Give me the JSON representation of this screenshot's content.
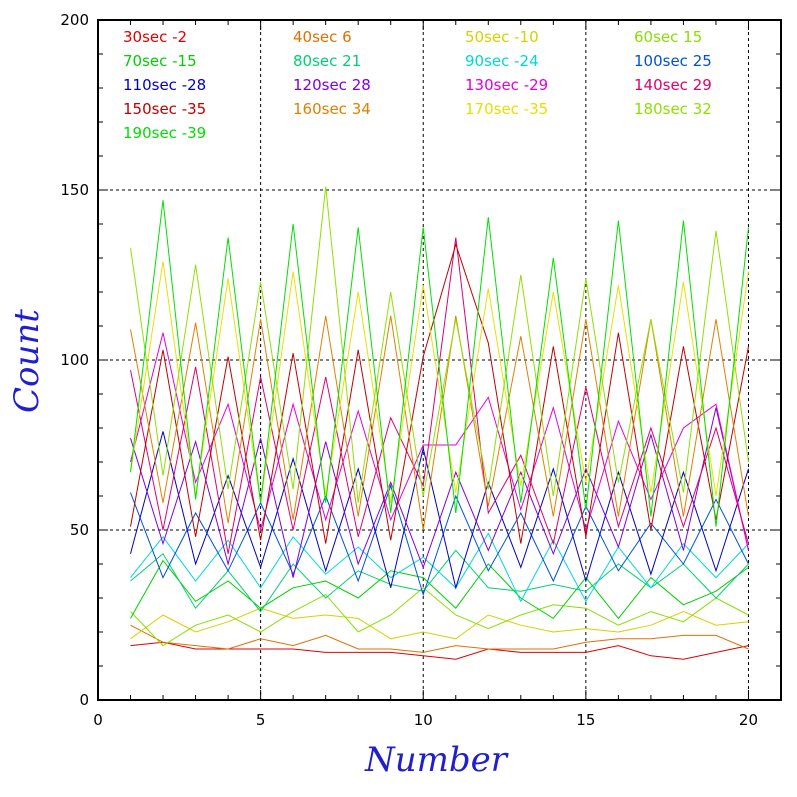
{
  "chart_data": {
    "type": "line",
    "xlabel": "Number",
    "ylabel": "Count",
    "xlim": [
      0,
      21
    ],
    "ylim": [
      0,
      200
    ],
    "x_ticks": [
      "0",
      "5",
      "10",
      "15",
      "20"
    ],
    "y_ticks": [
      "0",
      "50",
      "100",
      "150",
      "200"
    ],
    "grid": "dashed at x=5,10,15,20 and y=50,100,150",
    "axis_label_color": "#1f1fcf",
    "x": [
      1,
      2,
      3,
      4,
      5,
      6,
      7,
      8,
      9,
      10,
      11,
      12,
      13,
      14,
      15,
      16,
      17,
      18,
      19,
      20
    ],
    "series": [
      {
        "name": "30sec -2",
        "color": "#e00000",
        "values": [
          16,
          17,
          15,
          15,
          15,
          15,
          14,
          14,
          14,
          13,
          12,
          15,
          14,
          14,
          14,
          16,
          13,
          12,
          14,
          16
        ]
      },
      {
        "name": "40sec 6",
        "color": "#e07000",
        "values": [
          22,
          17,
          16,
          15,
          18,
          16,
          19,
          15,
          15,
          14,
          16,
          15,
          15,
          15,
          17,
          18,
          18,
          19,
          19,
          15
        ]
      },
      {
        "name": "50sec -10",
        "color": "#d8d000",
        "values": [
          18,
          25,
          20,
          23,
          27,
          24,
          25,
          24,
          18,
          20,
          18,
          25,
          22,
          20,
          21,
          20,
          22,
          26,
          22,
          23
        ]
      },
      {
        "name": "60sec 15",
        "color": "#88e000",
        "values": [
          26,
          16,
          22,
          25,
          20,
          26,
          31,
          20,
          25,
          33,
          25,
          21,
          25,
          28,
          27,
          22,
          26,
          23,
          30,
          25
        ]
      },
      {
        "name": "70sec -15",
        "color": "#00d000",
        "values": [
          24,
          41,
          29,
          35,
          27,
          33,
          35,
          30,
          38,
          36,
          27,
          40,
          30,
          24,
          36,
          24,
          36,
          28,
          32,
          39
        ]
      },
      {
        "name": "80sec 21",
        "color": "#00d070",
        "values": [
          35,
          43,
          27,
          38,
          26,
          40,
          30,
          38,
          34,
          32,
          44,
          33,
          32,
          34,
          32,
          40,
          33,
          40,
          30,
          40
        ]
      },
      {
        "name": "90sec -24",
        "color": "#00d8d8",
        "values": [
          36,
          48,
          35,
          47,
          33,
          48,
          37,
          45,
          36,
          42,
          33,
          49,
          29,
          47,
          29,
          45,
          33,
          46,
          36,
          46
        ]
      },
      {
        "name": "100sec 25",
        "color": "#0050e0",
        "values": [
          61,
          36,
          55,
          38,
          58,
          37,
          60,
          35,
          63,
          31,
          60,
          38,
          55,
          35,
          57,
          38,
          52,
          40,
          59,
          40
        ]
      },
      {
        "name": "110sec -28",
        "color": "#0000c8",
        "values": [
          43,
          79,
          40,
          66,
          39,
          71,
          38,
          68,
          33,
          74,
          33,
          64,
          39,
          68,
          35,
          67,
          37,
          67,
          38,
          68
        ]
      },
      {
        "name": "120sec 28",
        "color": "#8000e0",
        "values": [
          77,
          46,
          76,
          40,
          77,
          36,
          76,
          40,
          64,
          39,
          67,
          44,
          67,
          43,
          68,
          45,
          78,
          44,
          86,
          44
        ]
      },
      {
        "name": "130sec -29",
        "color": "#e000e0",
        "values": [
          70,
          108,
          64,
          87,
          50,
          87,
          53,
          85,
          53,
          75,
          75,
          89,
          56,
          86,
          50,
          82,
          59,
          80,
          87,
          44
        ]
      },
      {
        "name": "140sec 29",
        "color": "#e00070",
        "values": [
          97,
          50,
          98,
          43,
          95,
          50,
          95,
          48,
          83,
          63,
          136,
          55,
          72,
          46,
          92,
          51,
          80,
          51,
          80,
          46
        ]
      },
      {
        "name": "150sec -35",
        "color": "#c00000",
        "values": [
          51,
          103,
          48,
          101,
          47,
          102,
          46,
          103,
          47,
          101,
          134,
          105,
          46,
          104,
          48,
          108,
          50,
          104,
          53,
          104
        ]
      },
      {
        "name": "160sec 34",
        "color": "#e08000",
        "values": [
          109,
          58,
          111,
          52,
          112,
          53,
          113,
          54,
          113,
          50,
          113,
          57,
          107,
          54,
          112,
          54,
          112,
          54,
          112,
          54
        ]
      },
      {
        "name": "170sec -35",
        "color": "#e8e000",
        "values": [
          67,
          129,
          60,
          124,
          58,
          126,
          60,
          120,
          58,
          122,
          61,
          121,
          63,
          120,
          64,
          122,
          61,
          123,
          60,
          126
        ]
      },
      {
        "name": "180sec 32",
        "color": "#90e000",
        "values": [
          133,
          66,
          128,
          62,
          123,
          62,
          151,
          58,
          120,
          60,
          112,
          62,
          125,
          60,
          124,
          64,
          112,
          61,
          138,
          70
        ]
      },
      {
        "name": "190sec -39",
        "color": "#00e000",
        "values": [
          67,
          147,
          59,
          136,
          58,
          140,
          58,
          139,
          55,
          139,
          55,
          142,
          58,
          130,
          56,
          141,
          54,
          141,
          51,
          139
        ]
      }
    ]
  }
}
